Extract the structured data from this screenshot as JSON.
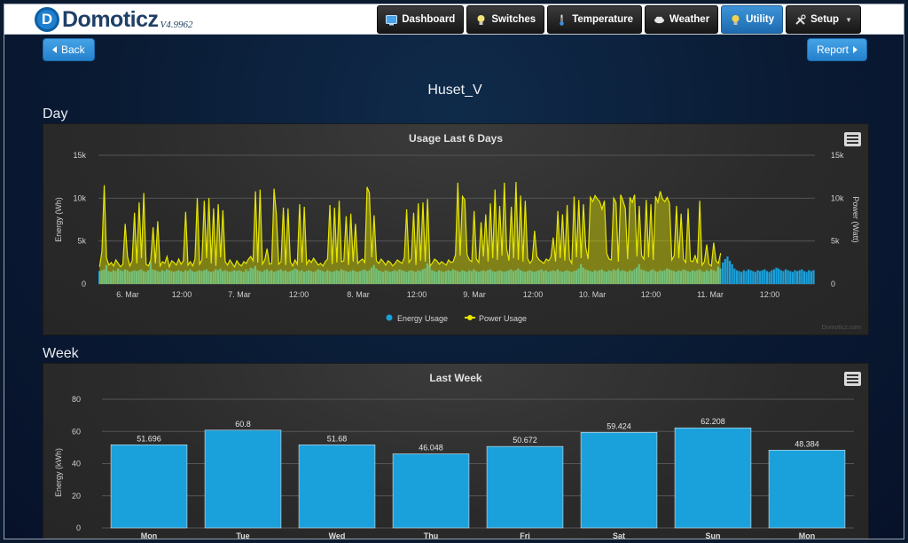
{
  "app": {
    "logo_letter": "D",
    "name": "Domoticz",
    "version": "V4.9962"
  },
  "nav": [
    {
      "label": "Dashboard",
      "icon": "dashboard-icon",
      "active": false
    },
    {
      "label": "Switches",
      "icon": "lightbulb-icon",
      "active": false
    },
    {
      "label": "Temperature",
      "icon": "thermometer-icon",
      "active": false
    },
    {
      "label": "Weather",
      "icon": "cloud-icon",
      "active": false
    },
    {
      "label": "Utility",
      "icon": "utility-bulb-icon",
      "active": true
    },
    {
      "label": "Setup",
      "icon": "tools-icon",
      "active": false,
      "dropdown": true
    }
  ],
  "buttons": {
    "back": "Back",
    "report": "Report"
  },
  "page_title": "Huset_V",
  "sections": {
    "day": "Day",
    "week": "Week"
  },
  "colors": {
    "energy": "#1aa1dc",
    "power": "#e6e600",
    "accent": "#2a86d0"
  },
  "chart_data": [
    {
      "type": "bar",
      "title": "Usage Last 6 Days",
      "xlabel": "",
      "ylabel": "Energy (Wh)",
      "ylabel_right": "Power (Watt)",
      "ylim": [
        0,
        15000
      ],
      "y_ticks": [
        "0",
        "5k",
        "10k",
        "15k"
      ],
      "x_ticks": [
        "6. Mar",
        "12:00",
        "7. Mar",
        "12:00",
        "8. Mar",
        "12:00",
        "9. Mar",
        "12:00",
        "10. Mar",
        "12:00",
        "11. Mar",
        "12:00"
      ],
      "legend": [
        "Energy Usage",
        "Power Usage"
      ],
      "legend_position": "bottom-center",
      "credit": "Domoticz.com",
      "x_start": "5. Mar 20:00",
      "x_end": "12. Mar 06:00",
      "series": [
        {
          "name": "Energy Usage",
          "kind": "bar",
          "color": "#1aa1dc",
          "values": [
            1500,
            1600,
            1700,
            2200,
            1500,
            1400,
            1600,
            1500,
            1800,
            1600,
            1500,
            1700,
            1600,
            1400,
            1500,
            1600,
            1500,
            1600,
            1700,
            1500,
            1400,
            1600,
            2600,
            1700,
            1600,
            1500,
            1400,
            1600,
            1500,
            1700,
            1600,
            1500,
            1400,
            1500,
            1600,
            1500,
            1400,
            1600,
            1500,
            1700,
            1500,
            1400,
            1500,
            1600,
            1500,
            1600,
            1700,
            1500,
            1400,
            1500,
            1700,
            1600,
            1800,
            1500,
            1600,
            1500,
            1400,
            1500,
            1600,
            1500,
            1600,
            1500,
            1400,
            1700,
            1500,
            1900,
            1800,
            2100,
            1600,
            1500,
            1400,
            1600,
            1700,
            1500,
            1600,
            1400,
            1500,
            1600,
            1700,
            1500,
            1600,
            1400,
            1500,
            1600,
            1800,
            1700,
            1500,
            1600,
            1400,
            1500,
            1600,
            1500,
            1400,
            1500,
            1700,
            1600,
            1500,
            1400,
            1600,
            1500,
            1400,
            1500,
            1600,
            1500,
            1700,
            1600,
            1500,
            1400,
            1500,
            1600,
            1500,
            1400,
            1500,
            1600,
            1700,
            1500,
            1600,
            1900,
            2200,
            1800,
            1600,
            1500,
            1400,
            1600,
            1500,
            1400,
            1500,
            1600,
            1500,
            1700,
            1600,
            1500,
            1400,
            1500,
            1600,
            1500,
            1400,
            1600,
            1500,
            1700,
            1800,
            2400,
            2100,
            1600,
            1500,
            1400,
            1600,
            1500,
            1400,
            1500,
            1600,
            1500,
            1700,
            1600,
            1500,
            1400,
            1600,
            1500,
            1400,
            1600,
            1500,
            1700,
            1500,
            1400,
            1500,
            1600,
            1500,
            1600,
            1700,
            1500,
            1400,
            1500,
            1600,
            1500,
            1400,
            1500,
            1600,
            1700,
            1500,
            1600,
            1800,
            1600,
            1500,
            1400,
            1500,
            1600,
            1500,
            1400,
            1500,
            1600,
            1700,
            1500,
            1600,
            1400,
            1500,
            1600,
            1500,
            1700,
            1500,
            1400,
            1500,
            1600,
            1500,
            1400,
            1500,
            1600,
            1800,
            2300,
            1900,
            1700,
            1600,
            1500,
            1400,
            1600,
            1500,
            1600,
            1700,
            1500,
            1400,
            1600,
            1500,
            1700,
            1600,
            1800,
            1500,
            1600,
            1500,
            1400,
            1600,
            1500,
            1700,
            1900,
            2300,
            1700,
            1600,
            1500,
            1400,
            1600,
            1700,
            1500,
            1400,
            1600,
            1500,
            1600,
            1800,
            1700,
            1600,
            1500,
            1400,
            1600,
            1500,
            1700,
            1600,
            1500,
            1400,
            1600,
            1500,
            1600,
            1700,
            1500,
            1400,
            1600,
            1500,
            1700,
            1600,
            1500,
            2000,
            1800,
            2500,
            2900,
            3200,
            2700,
            2300,
            1800,
            1600,
            1500,
            1400,
            1600,
            1500,
            1700,
            1600,
            1500,
            1400,
            1600,
            1500,
            1600,
            1700,
            1500,
            1400,
            1600,
            1700,
            1900,
            1800,
            1600,
            1500,
            1700,
            1600,
            1500,
            1400,
            1600,
            1500,
            1600,
            1700,
            1500,
            1400,
            1600,
            1500,
            1600
          ]
        },
        {
          "name": "Power Usage",
          "kind": "line",
          "color": "#e6e600",
          "values": [
            2000,
            3800,
            11500,
            3000,
            2200,
            2500,
            2100,
            2800,
            2400,
            2000,
            2300,
            7000,
            3200,
            2100,
            2700,
            8300,
            2400,
            9500,
            3000,
            10600,
            2300,
            2100,
            2800,
            6600,
            2400,
            7300,
            2100,
            2600,
            2400,
            3200,
            2000,
            2700,
            2500,
            2200,
            2900,
            2300,
            2700,
            8400,
            2200,
            2600,
            2100,
            2900,
            10000,
            2300,
            2800,
            9700,
            3000,
            10000,
            2400,
            8800,
            2100,
            9300,
            3100,
            8600,
            2600,
            2200,
            2800,
            2400,
            2000,
            2700,
            2300,
            2100,
            2600,
            2400,
            2900,
            3200,
            2700,
            10800,
            2500,
            11000,
            2300,
            2800,
            4100,
            2300,
            2400,
            11100,
            8100,
            2300,
            2600,
            8900,
            2200,
            8800,
            2600,
            2100,
            2800,
            2300,
            9300,
            2500,
            9000,
            2300,
            2800,
            2500,
            3000,
            2600,
            2200,
            2400,
            2100,
            2600,
            2900,
            9200,
            2300,
            8900,
            2500,
            9700,
            2600,
            2700,
            7900,
            2200,
            8200,
            2600,
            7000,
            2400,
            2700,
            2900,
            2500,
            11300,
            10600,
            3100,
            8000,
            2700,
            2400,
            2900,
            2600,
            2200,
            2700,
            2500,
            2100,
            2400,
            2800,
            2600,
            2400,
            3100,
            8700,
            2500,
            2900,
            8300,
            2200,
            9400,
            2700,
            9500,
            2600,
            9900,
            2100,
            2400,
            2900,
            2700,
            2300,
            2600,
            2400,
            2200,
            2800,
            2500,
            2600,
            3400,
            11800,
            3300,
            10200,
            9800,
            3400,
            2800,
            2600,
            8500,
            2900,
            2500,
            7200,
            3200,
            8100,
            2600,
            9400,
            3000,
            11000,
            2800,
            9100,
            3300,
            11800,
            4100,
            2700,
            9000,
            3000,
            11900,
            2800,
            10300,
            2600,
            9700,
            3000,
            2400,
            2800,
            6200,
            3200,
            2800,
            2600,
            2400,
            2900,
            2700,
            3100,
            5400,
            2600,
            8500,
            3000,
            8100,
            2700,
            9200,
            2900,
            2400,
            10200,
            3100,
            9800,
            3000,
            9300,
            4300,
            2900,
            10100,
            9600,
            10300,
            9900,
            9600,
            8700,
            9700,
            3600,
            2900,
            2800,
            10000,
            9500,
            2600,
            10400,
            9700,
            8800,
            2900,
            10100,
            9500,
            10400,
            3200,
            9100,
            3300,
            2900,
            9800,
            3100,
            9300,
            2800,
            10200,
            9500,
            10800,
            9900,
            9600,
            10100,
            9400,
            2800,
            3300,
            9100,
            3000,
            8200,
            2900,
            2500,
            8800,
            2700,
            2600,
            3300,
            2400,
            9700,
            2200,
            2600,
            4600,
            2300,
            2100,
            4800,
            2700,
            2400,
            3600
          ]
        }
      ]
    },
    {
      "type": "bar",
      "title": "Last Week",
      "xlabel": "",
      "ylabel": "Energy (kWh)",
      "ylim": [
        0,
        80
      ],
      "y_ticks": [
        "0",
        "20",
        "40",
        "60",
        "80"
      ],
      "categories": [
        "Mon",
        "Tue",
        "Wed",
        "Thu",
        "Fri",
        "Sat",
        "Sun",
        "Mon"
      ],
      "values": [
        51.696,
        60.8,
        51.68,
        46.048,
        50.672,
        59.424,
        62.208,
        48.384
      ],
      "color": "#1aa1dc"
    }
  ]
}
